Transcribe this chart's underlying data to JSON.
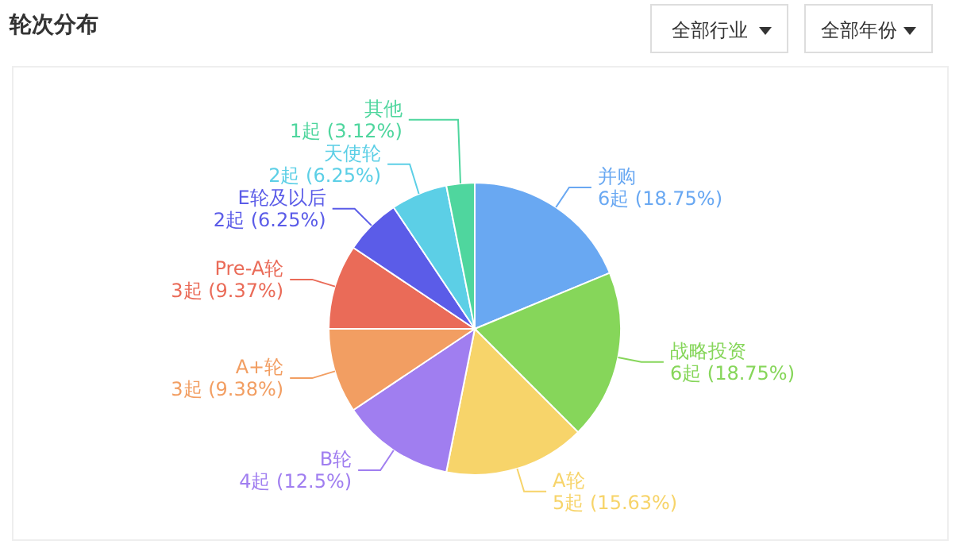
{
  "chart_data": {
    "type": "pie",
    "title": "轮次分布",
    "annotations": [
      "全部行业",
      "全部年份"
    ],
    "categories": [
      "并购",
      "战略投资",
      "A轮",
      "B轮",
      "A+轮",
      "Pre-A轮",
      "E轮及以后",
      "天使轮",
      "其他"
    ],
    "values": [
      6,
      6,
      5,
      4,
      3,
      3,
      2,
      2,
      1
    ],
    "value_labels": [
      "6起 (18.75%)",
      "6起 (18.75%)",
      "5起 (15.63%)",
      "4起 (12.5%)",
      "3起 (9.38%)",
      "3起 (9.37%)",
      "2起 (6.25%)",
      "2起 (6.25%)",
      "1起 (3.12%)"
    ],
    "colors": [
      "#69a8f2",
      "#86d65a",
      "#f7d46a",
      "#a07ef0",
      "#f29e62",
      "#ea6b58",
      "#5b5ce8",
      "#5ccfe6",
      "#4fd69e"
    ]
  }
}
